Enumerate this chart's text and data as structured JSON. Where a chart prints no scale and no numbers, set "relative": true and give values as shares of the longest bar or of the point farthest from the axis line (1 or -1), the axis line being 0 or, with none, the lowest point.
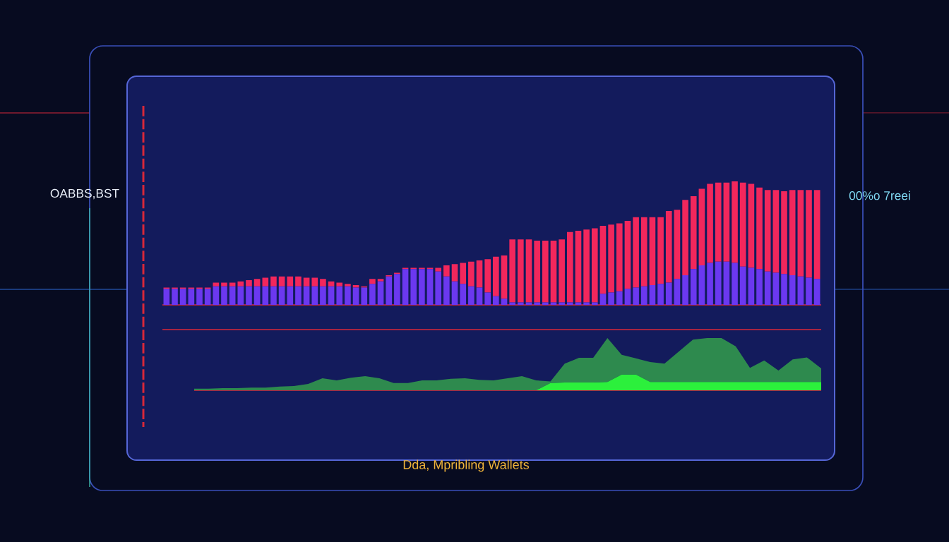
{
  "chart_data": [
    {
      "type": "bar",
      "stacked": true,
      "relative": true,
      "categories": [
        null,
        null,
        null,
        null,
        null,
        null,
        null,
        null,
        null,
        null,
        null,
        null,
        null,
        null,
        null,
        null,
        null,
        null,
        null,
        null,
        null,
        null,
        null,
        null,
        null,
        null,
        null,
        null,
        null,
        null,
        null,
        null,
        null,
        null,
        null,
        null,
        null,
        null,
        null,
        null,
        null,
        null,
        null,
        null,
        null,
        null,
        null,
        null,
        null,
        null,
        null,
        null,
        null,
        null,
        null,
        null,
        null,
        null,
        null,
        null,
        null,
        null,
        null,
        null,
        null,
        null,
        null,
        null,
        null,
        null,
        null,
        null,
        null,
        null,
        null,
        null,
        null,
        null,
        null,
        null
      ],
      "series": [
        {
          "color": "#6b38f0",
          "values": [
            0.13,
            0.13,
            0.13,
            0.13,
            0.13,
            0.13,
            0.15,
            0.15,
            0.15,
            0.15,
            0.15,
            0.15,
            0.15,
            0.15,
            0.15,
            0.15,
            0.15,
            0.15,
            0.15,
            0.15,
            0.15,
            0.15,
            0.15,
            0.14,
            0.14,
            0.17,
            0.19,
            0.23,
            0.25,
            0.29,
            0.29,
            0.29,
            0.29,
            0.27,
            0.23,
            0.19,
            0.17,
            0.15,
            0.14,
            0.1,
            0.07,
            0.05,
            0.02,
            0.02,
            0.02,
            0.02,
            0.02,
            0.02,
            0.02,
            0.02,
            0.02,
            0.02,
            0.02,
            0.09,
            0.1,
            0.11,
            0.13,
            0.14,
            0.15,
            0.16,
            0.17,
            0.18,
            0.21,
            0.24,
            0.29,
            0.32,
            0.34,
            0.35,
            0.35,
            0.34,
            0.31,
            0.3,
            0.29,
            0.27,
            0.26,
            0.25,
            0.24,
            0.23,
            0.22,
            0.21
          ]
        },
        {
          "color": "#f2275c",
          "values": [
            0.01,
            0.01,
            0.01,
            0.01,
            0.01,
            0.01,
            0.03,
            0.03,
            0.03,
            0.04,
            0.05,
            0.06,
            0.07,
            0.08,
            0.08,
            0.08,
            0.08,
            0.07,
            0.07,
            0.06,
            0.04,
            0.03,
            0.02,
            0.02,
            0.01,
            0.04,
            0.02,
            0.01,
            0.01,
            0.01,
            0.01,
            0.01,
            0.01,
            0.03,
            0.09,
            0.14,
            0.17,
            0.2,
            0.22,
            0.27,
            0.32,
            0.35,
            0.51,
            0.51,
            0.51,
            0.5,
            0.5,
            0.5,
            0.51,
            0.57,
            0.58,
            0.59,
            0.6,
            0.55,
            0.55,
            0.55,
            0.55,
            0.57,
            0.56,
            0.55,
            0.54,
            0.58,
            0.56,
            0.61,
            0.59,
            0.62,
            0.64,
            0.64,
            0.64,
            0.66,
            0.68,
            0.68,
            0.66,
            0.66,
            0.67,
            0.67,
            0.69,
            0.7,
            0.71,
            0.72
          ]
        }
      ],
      "annotations": [
        "OABBS,BST",
        "00%o 7reei"
      ]
    },
    {
      "type": "area",
      "stacked": true,
      "relative": true,
      "xlabel": "Dda, Mpribling Wallets",
      "categories": [
        null,
        null,
        null,
        null,
        null,
        null,
        null,
        null,
        null,
        null,
        null,
        null,
        null,
        null,
        null,
        null,
        null,
        null,
        null,
        null,
        null,
        null,
        null,
        null,
        null,
        null,
        null,
        null,
        null,
        null,
        null,
        null,
        null,
        null,
        null,
        null,
        null,
        null,
        null,
        null,
        null,
        null,
        null,
        null,
        null
      ],
      "series": [
        {
          "color": "#2cf03c",
          "values": [
            0,
            0,
            0,
            0,
            0,
            0,
            0,
            0,
            0,
            0,
            0,
            0,
            0,
            0,
            0,
            0,
            0,
            0,
            0,
            0,
            0,
            0,
            0,
            0,
            0,
            0.14,
            0.15,
            0.15,
            0.15,
            0.16,
            0.3,
            0.3,
            0.16,
            0.16,
            0.16,
            0.16,
            0.16,
            0.16,
            0.16,
            0.16,
            0.16,
            0.16,
            0.16,
            0.16,
            0.16
          ]
        },
        {
          "color": "#2e8a4e",
          "values": [
            0.03,
            0.03,
            0.04,
            0.04,
            0.05,
            0.05,
            0.07,
            0.08,
            0.12,
            0.23,
            0.19,
            0.24,
            0.27,
            0.23,
            0.14,
            0.14,
            0.19,
            0.19,
            0.22,
            0.23,
            0.2,
            0.19,
            0.23,
            0.27,
            0.19,
            0.03,
            0.36,
            0.47,
            0.47,
            0.84,
            0.38,
            0.31,
            0.38,
            0.35,
            0.58,
            0.81,
            0.84,
            0.84,
            0.68,
            0.27,
            0.41,
            0.22,
            0.43,
            0.47,
            0.26
          ]
        }
      ]
    }
  ]
}
